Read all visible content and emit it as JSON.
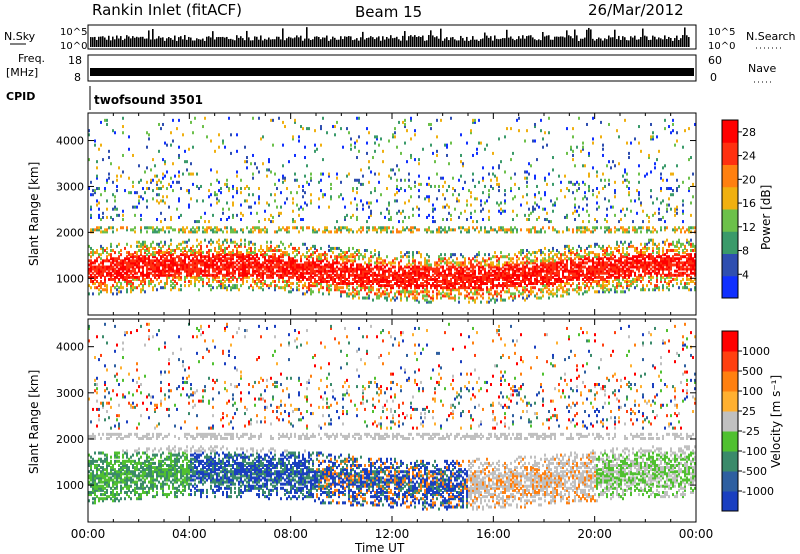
{
  "header": {
    "station": "Rankin Inlet (fitACF)",
    "beam": "Beam 15",
    "date": "26/Mar/2012"
  },
  "strip_labels": {
    "nsky": "N.Sky",
    "nsearch": "N.Search",
    "freq_line1": "Freq.",
    "freq_line2": "[MHz]",
    "nave": "Nave",
    "cpid": "CPID",
    "cpid_value": "twofsound 3501",
    "nsky_ticks": [
      "10^5",
      "10^0"
    ],
    "freq_ticks": [
      "18",
      "8"
    ],
    "nave_ticks": [
      "60",
      "0"
    ]
  },
  "chart_data": [
    {
      "type": "heatmap",
      "title": "",
      "xlabel": "",
      "ylabel": "Slant Range [km]",
      "xlim": [
        0,
        24
      ],
      "ylim": [
        200,
        4600
      ],
      "yticks": [
        1000,
        2000,
        3000,
        4000
      ],
      "xticks": [
        "00:00",
        "04:00",
        "08:00",
        "12:00",
        "16:00",
        "20:00",
        "00:00"
      ],
      "colorbar": {
        "label": "Power [dB]",
        "ticks": [
          4,
          8,
          12,
          16,
          20,
          24,
          28
        ],
        "range": [
          0,
          30
        ],
        "colors": [
          "#1030ff",
          "#2f4fb0",
          "#3a9a6a",
          "#6cc04a",
          "#f0b010",
          "#ff8010",
          "#ff3010",
          "#ff0000"
        ]
      }
    },
    {
      "type": "heatmap",
      "title": "",
      "xlabel": "Time UT",
      "ylabel": "Slant Range [km]",
      "xlim": [
        0,
        24
      ],
      "ylim": [
        200,
        4600
      ],
      "yticks": [
        1000,
        2000,
        3000,
        4000
      ],
      "xticks": [
        "00:00",
        "04:00",
        "08:00",
        "12:00",
        "16:00",
        "20:00",
        "00:00"
      ],
      "colorbar": {
        "label": "Velocity [m s⁻¹]",
        "ticks": [
          "1000",
          "500",
          "100",
          "25",
          "-25",
          "-100",
          "-500",
          "-1000"
        ],
        "colors": [
          "#1a3fc0",
          "#2e5fa0",
          "#3a8a6a",
          "#50c030",
          "#c0c0c0",
          "#ffb030",
          "#ff8010",
          "#ff4010",
          "#ff0000"
        ]
      }
    }
  ]
}
